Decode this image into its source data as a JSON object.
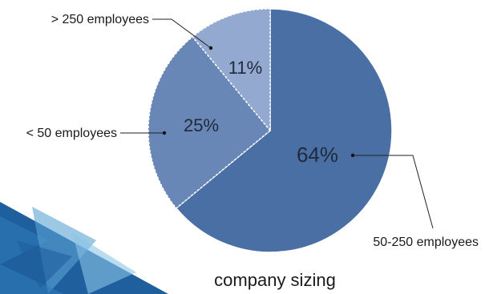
{
  "chart_data": {
    "type": "pie",
    "title": "company sizing",
    "slices": [
      {
        "label": "50-250 employees",
        "value": 64,
        "value_label": "64%",
        "color": "#4a6fa5"
      },
      {
        "label": "< 50 employees",
        "value": 25,
        "value_label": "25%",
        "color": "#6886b6"
      },
      {
        "label": "> 250 employees",
        "value": 11,
        "value_label": "11%",
        "color": "#93a9cf"
      }
    ]
  },
  "decor": {
    "accent_colors": [
      "#1f5f9e",
      "#2d7ab8",
      "#5aa3d6",
      "#8cc4e8"
    ]
  }
}
